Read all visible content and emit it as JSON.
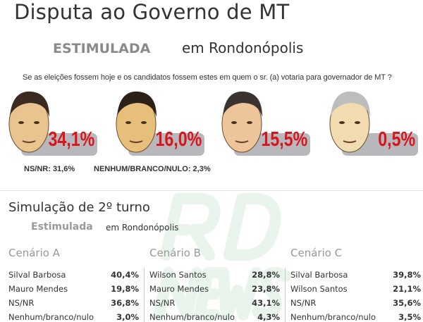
{
  "title": "Disputa ao Governo de MT",
  "subtitle": {
    "mode": "ESTIMULADA",
    "location": "em Rondonópolis"
  },
  "question": "Se as eleições fossem hoje e os candidatos fossem estes em quem o sr. (a) votaria para governador de MT ?",
  "watermark": "RD NEWS",
  "accent_color": "#d8141c",
  "chart_data": {
    "type": "table",
    "first_round": {
      "values": [
        "34,1%",
        "16,0%",
        "15,5%",
        "0,5%"
      ],
      "ns_nr": "NS/NR: 31,6%",
      "nenhum": "NENHUM/BRANCO/NULO: 2,3%"
    },
    "second_round": {
      "title": "Simulação de 2º turno",
      "mode": "Estimulada",
      "location": "em Rondonópolis",
      "scenarios": [
        {
          "name": "Cenário A",
          "rows": [
            [
              "Silval Barbosa",
              "40,4%"
            ],
            [
              "Mauro Mendes",
              "19,8%"
            ],
            [
              "NS/NR",
              "36,8%"
            ],
            [
              "Nenhum/branco/nulo",
              "3,0%"
            ]
          ]
        },
        {
          "name": "Cenário B",
          "rows": [
            [
              "Wilson Santos",
              "28,8%"
            ],
            [
              "Mauro Mendes",
              "23,8%"
            ],
            [
              "NS/NR",
              "43,1%"
            ],
            [
              "Nenhum/branco/nulo",
              "4,3%"
            ]
          ]
        },
        {
          "name": "Cenário C",
          "rows": [
            [
              "Silval Barbosa",
              "39,8%"
            ],
            [
              "Wilson Santos",
              "21,1%"
            ],
            [
              "NS/NR",
              "35,6%"
            ],
            [
              "Nenhum/branco/nulo",
              "3,5%"
            ]
          ]
        }
      ]
    }
  }
}
